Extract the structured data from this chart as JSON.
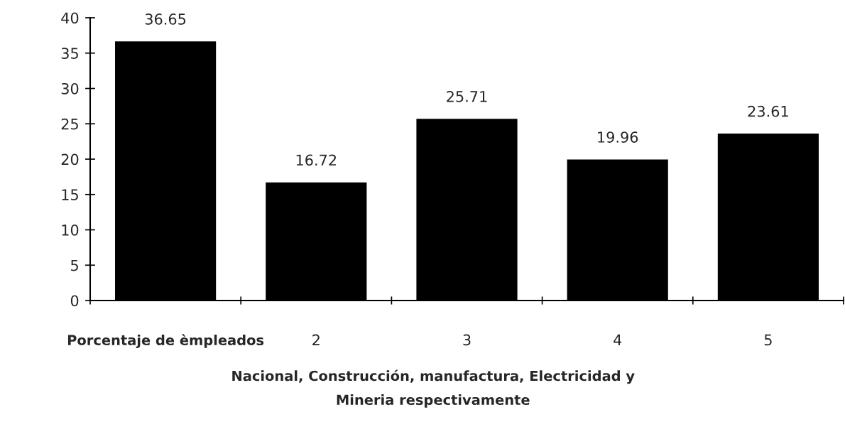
{
  "chart_data": {
    "type": "bar",
    "xlabel": "Nacional, Construcción, manufactura, Electricidad y\nMineria respectivamente",
    "categories": [
      "Porcentaje de èmpleados",
      "2",
      "3",
      "4",
      "5"
    ],
    "values": [
      36.65,
      16.72,
      25.71,
      19.96,
      23.61
    ],
    "color": "#000000",
    "ylim": [
      0,
      40
    ],
    "yticks": [
      0,
      5,
      10,
      15,
      20,
      25,
      30,
      35,
      40
    ],
    "data_labels": true,
    "grid": false,
    "legend": false
  }
}
